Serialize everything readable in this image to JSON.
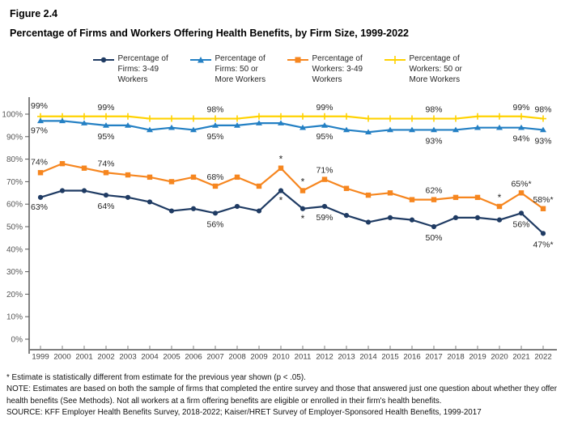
{
  "header": {
    "figure_label": "Figure 2.4",
    "title": "Percentage of Firms and Workers Offering Health Benefits, by Firm Size, 1999-2022"
  },
  "chart_data": {
    "type": "line",
    "title": "Percentage of Firms and Workers Offering Health Benefits, by Firm Size, 1999-2022",
    "x": [
      1999,
      2000,
      2001,
      2002,
      2003,
      2004,
      2005,
      2006,
      2007,
      2008,
      2009,
      2010,
      2011,
      2012,
      2013,
      2014,
      2015,
      2016,
      2017,
      2018,
      2019,
      2020,
      2021,
      2022
    ],
    "ylim": [
      0,
      100
    ],
    "ytick_step": 10,
    "ytick_format": "percent",
    "grid": false,
    "legend_position": "top",
    "series": [
      {
        "name": "Percentage of Firms: 3-49 Workers",
        "color": "#1F3B63",
        "marker": "circle",
        "values": [
          63,
          66,
          66,
          64,
          63,
          61,
          57,
          58,
          56,
          59,
          57,
          66,
          58,
          59,
          55,
          52,
          54,
          53,
          50,
          54,
          54,
          53,
          56,
          47
        ]
      },
      {
        "name": "Percentage of Firms: 50 or More Workers",
        "color": "#2480C4",
        "marker": "triangle",
        "values": [
          97,
          97,
          96,
          95,
          95,
          93,
          94,
          93,
          95,
          95,
          96,
          96,
          94,
          95,
          93,
          92,
          93,
          93,
          93,
          93,
          94,
          94,
          94,
          93
        ]
      },
      {
        "name": "Percentage of Workers: 3-49 Workers",
        "color": "#F6861F",
        "marker": "square",
        "values": [
          74,
          78,
          76,
          74,
          73,
          72,
          70,
          72,
          68,
          72,
          68,
          76,
          66,
          71,
          67,
          64,
          65,
          62,
          62,
          63,
          63,
          59,
          65,
          58
        ]
      },
      {
        "name": "Percentage of Workers: 50 or More Workers",
        "color": "#FFD200",
        "marker": "plus",
        "values": [
          99,
          99,
          99,
          99,
          99,
          98,
          98,
          98,
          98,
          98,
          99,
          99,
          99,
          99,
          99,
          98,
          98,
          98,
          98,
          98,
          99,
          99,
          99,
          98
        ]
      }
    ],
    "point_labels": [
      {
        "year": 1999,
        "series": 3,
        "text": "99%",
        "placement": "start-above"
      },
      {
        "year": 1999,
        "series": 1,
        "text": "97%",
        "placement": "start-below"
      },
      {
        "year": 1999,
        "series": 2,
        "text": "74%",
        "placement": "start-above"
      },
      {
        "year": 1999,
        "series": 0,
        "text": "63%",
        "placement": "start-below"
      },
      {
        "year": 2002,
        "series": 3,
        "text": "99%",
        "placement": "above"
      },
      {
        "year": 2002,
        "series": 1,
        "text": "95%",
        "placement": "below"
      },
      {
        "year": 2002,
        "series": 2,
        "text": "74%",
        "placement": "above"
      },
      {
        "year": 2002,
        "series": 0,
        "text": "64%",
        "placement": "below"
      },
      {
        "year": 2007,
        "series": 3,
        "text": "98%",
        "placement": "above"
      },
      {
        "year": 2007,
        "series": 1,
        "text": "95%",
        "placement": "below"
      },
      {
        "year": 2007,
        "series": 2,
        "text": "68%",
        "placement": "above"
      },
      {
        "year": 2007,
        "series": 0,
        "text": "56%",
        "placement": "below"
      },
      {
        "year": 2012,
        "series": 3,
        "text": "99%",
        "placement": "above"
      },
      {
        "year": 2012,
        "series": 1,
        "text": "95%",
        "placement": "below"
      },
      {
        "year": 2012,
        "series": 2,
        "text": "71%",
        "placement": "above"
      },
      {
        "year": 2012,
        "series": 0,
        "text": "59%",
        "placement": "below"
      },
      {
        "year": 2017,
        "series": 3,
        "text": "98%",
        "placement": "above"
      },
      {
        "year": 2017,
        "series": 1,
        "text": "93%",
        "placement": "below"
      },
      {
        "year": 2017,
        "series": 2,
        "text": "62%",
        "placement": "above"
      },
      {
        "year": 2017,
        "series": 0,
        "text": "50%",
        "placement": "below"
      },
      {
        "year": 2021,
        "series": 3,
        "text": "99%",
        "placement": "above"
      },
      {
        "year": 2021,
        "series": 1,
        "text": "94%",
        "placement": "below"
      },
      {
        "year": 2021,
        "series": 2,
        "text": "65%*",
        "placement": "above"
      },
      {
        "year": 2021,
        "series": 0,
        "text": "56%",
        "placement": "below"
      },
      {
        "year": 2022,
        "series": 3,
        "text": "98%",
        "placement": "above"
      },
      {
        "year": 2022,
        "series": 1,
        "text": "93%",
        "placement": "below"
      },
      {
        "year": 2022,
        "series": 2,
        "text": "58%*",
        "placement": "above"
      },
      {
        "year": 2022,
        "series": 0,
        "text": "47%*",
        "placement": "below"
      },
      {
        "year": 2010,
        "series": 2,
        "text": "*",
        "placement": "star-above"
      },
      {
        "year": 2010,
        "series": 0,
        "text": "*",
        "placement": "star-below"
      },
      {
        "year": 2011,
        "series": 2,
        "text": "*",
        "placement": "star-above"
      },
      {
        "year": 2011,
        "series": 0,
        "text": "*",
        "placement": "star-below"
      },
      {
        "year": 2020,
        "series": 2,
        "text": "*",
        "placement": "star-above"
      }
    ],
    "axis_colors": {
      "y_axis_line": "#595959",
      "x_axis_line": "#7F7F7F",
      "y_tick_label": "#595959",
      "x_tick_label": "#404040",
      "data_label": "#262626"
    }
  },
  "footnotes": {
    "asterisk": "* Estimate is statistically different from estimate for the previous year shown (p < .05).",
    "note": "NOTE: Estimates are based on both the sample of firms that completed the entire survey and those that answered just one question about whether they offer health benefits (See Methods).  Not all workers at a firm offering benefits are eligible or enrolled in their firm's health benefits.",
    "source": "SOURCE: KFF Employer Health Benefits Survey, 2018-2022; Kaiser/HRET Survey of Employer-Sponsored Health Benefits, 1999-2017"
  }
}
